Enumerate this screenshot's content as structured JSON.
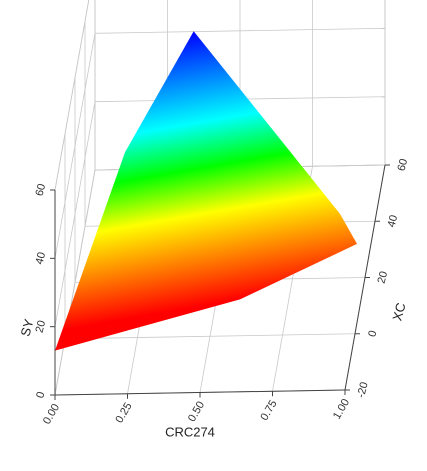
{
  "chart_data": {
    "type": "surface",
    "x_label": "CRC274",
    "y_label": "XC",
    "z_label": "SY",
    "xlim": [
      0,
      1
    ],
    "xticks": [
      {
        "value": 0,
        "label": "0.00"
      },
      {
        "value": 0.25,
        "label": "0.25"
      },
      {
        "value": 0.5,
        "label": "0.50"
      },
      {
        "value": 0.75,
        "label": "0.75"
      },
      {
        "value": 1,
        "label": "1.00"
      }
    ],
    "ylim": [
      -20,
      60
    ],
    "yticks": [
      -20,
      0,
      20,
      40,
      60
    ],
    "zlim": [
      0,
      60
    ],
    "zticks": [
      0,
      20,
      40,
      60
    ],
    "grid": true,
    "colormap": [
      "#ff0000",
      "#ff8000",
      "#ffff00",
      "#00ff00",
      "#00ffff",
      "#0080ff",
      "#0000ff"
    ],
    "surface": {
      "x": [
        0,
        0.2,
        0.38,
        0.95,
        1,
        0.6
      ],
      "y": [
        -20,
        4,
        37,
        -1,
        4,
        2
      ],
      "z": [
        13,
        51,
        59,
        36,
        23,
        9
      ]
    }
  }
}
